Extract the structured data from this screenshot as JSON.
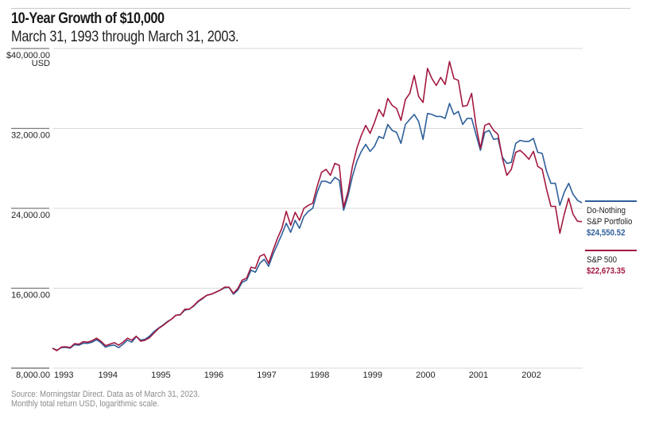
{
  "header": {
    "title": "10-Year Growth of $10,000",
    "subtitle": "March 31, 1993 through March 31, 2003."
  },
  "footer": {
    "line1": "Source: Morningstar Direct. Data as of March 31, 2023.",
    "line2": "Monthly total return USD, logarithmic scale."
  },
  "colors": {
    "do_nothing": "#2e5f9a",
    "sp500": "#a3183f",
    "grid": "#d9d9d9",
    "axis_tick": "#7a7a7a"
  },
  "chart_data": {
    "type": "line",
    "title": "10-Year Growth of $10,000",
    "subtitle": "March 31, 1993 through March 31, 2003.",
    "xlabel": "",
    "ylabel": "USD",
    "y_unit_label": "USD",
    "ylim": [
      8000,
      40000
    ],
    "yticks": [
      8000,
      16000,
      24000,
      32000,
      40000
    ],
    "ytick_labels": [
      "8,000.00",
      "16,000.00",
      "24,000.00",
      "32,000.00",
      "$40,000.00"
    ],
    "x_start": "1993-03",
    "x_end": "2003-03",
    "xticks": [
      1993,
      1994,
      1995,
      1996,
      1997,
      1998,
      1999,
      2000,
      2001,
      2002
    ],
    "xtick_labels": [
      "1993",
      "1994",
      "1995",
      "1996",
      "1997",
      "1998",
      "1999",
      "2000",
      "2001",
      "2002"
    ],
    "grid": true,
    "legend": "right",
    "series": [
      {
        "name": "Do-Nothing S&P Portfolio",
        "legend_lines": [
          "Do-Nothing",
          "S&P Portfolio"
        ],
        "end_value_label": "$24,550.52",
        "color_key": "do_nothing",
        "values": [
          10000,
          9800,
          10050,
          10080,
          10000,
          10350,
          10300,
          10500,
          10480,
          10600,
          10850,
          10550,
          10100,
          10250,
          10300,
          10050,
          10400,
          10800,
          10600,
          11150,
          10800,
          10900,
          11200,
          11650,
          12000,
          12300,
          12650,
          12900,
          13300,
          13350,
          13800,
          13900,
          14200,
          14650,
          14950,
          15300,
          15400,
          15600,
          15800,
          16050,
          16100,
          15400,
          15800,
          16600,
          16800,
          17800,
          17600,
          18500,
          18900,
          18200,
          19400,
          20400,
          21400,
          22500,
          21600,
          22800,
          22000,
          23200,
          23700,
          24000,
          25600,
          26700,
          26700,
          26500,
          27100,
          26800,
          23800,
          25300,
          27200,
          28700,
          29700,
          30400,
          29700,
          30200,
          31200,
          31000,
          32400,
          31800,
          31600,
          30500,
          32400,
          32900,
          33400,
          32700,
          30900,
          33500,
          33400,
          33200,
          33200,
          33000,
          34500,
          33400,
          33700,
          32400,
          33000,
          33000,
          31400,
          29800,
          31600,
          31800,
          30900,
          31000,
          29100,
          28500,
          28600,
          30500,
          30800,
          30700,
          30700,
          31000,
          29600,
          29500,
          27700,
          26500,
          26500,
          24300,
          25600,
          26500,
          25400,
          24800,
          24550
        ]
      },
      {
        "name": "S&P 500",
        "legend_lines": [
          "S&P 500"
        ],
        "end_value_label": "$22,673.35",
        "color_key": "sp500",
        "values": [
          10000,
          9750,
          10100,
          10150,
          10050,
          10450,
          10400,
          10650,
          10600,
          10750,
          11000,
          10700,
          10250,
          10400,
          10550,
          10300,
          10600,
          11000,
          10800,
          11200,
          10700,
          10800,
          11050,
          11500,
          11950,
          12250,
          12600,
          12900,
          13300,
          13350,
          13900,
          13900,
          14250,
          14700,
          15000,
          15300,
          15400,
          15600,
          15800,
          16100,
          16100,
          15500,
          15950,
          16800,
          17000,
          18100,
          18000,
          19200,
          19400,
          18500,
          19800,
          21000,
          22000,
          23700,
          22300,
          23600,
          22800,
          24000,
          24300,
          24500,
          26200,
          27600,
          27900,
          27300,
          28500,
          28300,
          24100,
          25700,
          28200,
          30000,
          31300,
          32300,
          31500,
          32600,
          33900,
          33200,
          35000,
          34300,
          34000,
          32800,
          34900,
          35500,
          37300,
          35200,
          34600,
          38000,
          37000,
          36300,
          37100,
          36400,
          38700,
          37000,
          36800,
          34200,
          34300,
          35500,
          32300,
          30000,
          32300,
          32500,
          31800,
          31400,
          29000,
          27300,
          27900,
          29600,
          29800,
          29400,
          28900,
          29700,
          28200,
          27900,
          25900,
          24200,
          24200,
          21500,
          23400,
          25000,
          23400,
          22700,
          22673
        ]
      }
    ]
  }
}
